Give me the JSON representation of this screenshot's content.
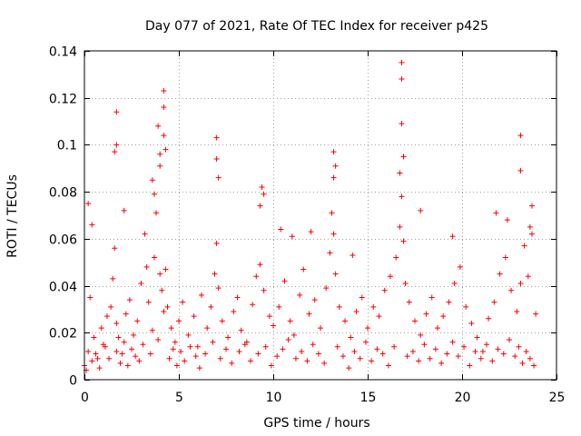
{
  "chart_data": {
    "type": "scatter",
    "title": "Day 077 of 2021, Rate Of TEC Index for receiver p425",
    "xlabel": "GPS time / hours",
    "ylabel": "ROTI / TECUs",
    "xlim": [
      0,
      25
    ],
    "ylim": [
      0,
      0.14
    ],
    "xticks": [
      0,
      5,
      10,
      15,
      20,
      25
    ],
    "yticks": [
      0,
      0.02,
      0.04,
      0.06,
      0.08,
      0.1,
      0.12,
      0.14
    ],
    "xtick_labels": [
      "0",
      "5",
      "10",
      "15",
      "20",
      "25"
    ],
    "ytick_labels": [
      "0",
      "0.02",
      "0.04",
      "0.06",
      "0.08",
      "0.1",
      "0.12",
      "0.14"
    ],
    "grid": true,
    "marker": "+",
    "color": "#ff0000",
    "series": [
      {
        "name": "ROTI",
        "x": [
          0.0,
          0.2,
          0.3,
          0.5,
          0.7,
          0.9,
          1.0,
          1.2,
          1.4,
          1.5,
          1.6,
          1.7,
          1.8,
          2.0,
          2.2,
          2.4,
          2.6,
          2.8,
          3.0,
          3.2,
          3.3,
          3.4,
          3.6,
          3.7,
          3.8,
          4.0,
          4.1,
          4.2,
          4.3,
          4.4,
          4.6,
          4.8,
          5.0,
          5.2,
          5.5,
          5.8,
          6.0,
          6.2,
          6.5,
          6.7,
          6.9,
          7.0,
          7.1,
          7.3,
          7.6,
          7.9,
          8.1,
          8.3,
          8.6,
          8.9,
          9.1,
          9.3,
          9.5,
          9.8,
          10.0,
          10.3,
          10.6,
          10.9,
          11.1,
          11.4,
          11.6,
          11.9,
          12.2,
          12.5,
          12.8,
          13.0,
          13.1,
          13.2,
          13.3,
          13.5,
          13.8,
          14.1,
          14.4,
          14.7,
          15.0,
          15.3,
          15.6,
          15.9,
          16.2,
          16.5,
          16.7,
          16.8,
          16.9,
          17.0,
          17.2,
          17.5,
          17.8,
          18.1,
          18.4,
          18.7,
          19.0,
          19.3,
          19.6,
          19.9,
          20.2,
          20.5,
          20.8,
          21.1,
          21.4,
          21.7,
          22.0,
          22.3,
          22.6,
          22.9,
          23.1,
          23.3,
          23.5,
          23.7,
          23.9,
          0.1,
          0.4,
          0.6,
          0.8,
          1.1,
          1.3,
          1.7,
          1.9,
          2.1,
          2.3,
          2.5,
          2.7,
          2.9,
          3.1,
          3.5,
          3.9,
          4.5,
          4.7,
          4.9,
          5.1,
          5.3,
          5.6,
          5.9,
          6.1,
          6.4,
          6.8,
          7.2,
          7.5,
          7.8,
          8.2,
          8.5,
          8.8,
          9.2,
          9.6,
          9.9,
          10.2,
          10.5,
          10.8,
          11.2,
          11.5,
          11.8,
          12.1,
          12.4,
          12.7,
          13.4,
          13.7,
          14.0,
          14.3,
          14.6,
          14.9,
          15.2,
          15.5,
          15.8,
          16.1,
          16.4,
          17.1,
          17.4,
          17.7,
          18.0,
          18.3,
          18.6,
          18.9,
          19.2,
          19.5,
          19.8,
          20.1,
          20.4,
          20.7,
          21.0,
          21.3,
          21.6,
          21.9,
          22.2,
          22.5,
          22.8,
          23.0,
          23.2,
          23.4,
          23.6,
          23.8,
          16.8,
          16.8,
          16.8,
          16.9,
          16.7,
          4.2,
          4.2,
          4.2,
          4.3,
          1.7,
          1.7,
          1.6,
          7.0,
          7.0,
          7.1,
          3.9,
          4.0,
          4.0,
          3.6,
          3.7,
          13.2,
          13.3,
          13.2,
          23.1,
          23.1,
          9.4,
          9.5,
          9.3,
          23.7,
          23.6,
          0.2,
          0.4,
          2.1,
          10.4,
          11.0,
          12.0,
          14.2,
          17.8,
          19.5,
          21.8,
          22.4
        ],
        "y": [
          0.006,
          0.012,
          0.035,
          0.018,
          0.009,
          0.022,
          0.015,
          0.027,
          0.031,
          0.043,
          0.056,
          0.024,
          0.018,
          0.011,
          0.028,
          0.034,
          0.019,
          0.025,
          0.041,
          0.062,
          0.048,
          0.033,
          0.021,
          0.052,
          0.071,
          0.045,
          0.038,
          0.029,
          0.047,
          0.031,
          0.022,
          0.016,
          0.025,
          0.033,
          0.019,
          0.027,
          0.014,
          0.036,
          0.022,
          0.031,
          0.045,
          0.058,
          0.039,
          0.025,
          0.018,
          0.029,
          0.035,
          0.021,
          0.016,
          0.032,
          0.044,
          0.049,
          0.038,
          0.027,
          0.023,
          0.031,
          0.042,
          0.025,
          0.019,
          0.036,
          0.047,
          0.028,
          0.034,
          0.022,
          0.039,
          0.054,
          0.071,
          0.062,
          0.045,
          0.031,
          0.025,
          0.018,
          0.029,
          0.035,
          0.022,
          0.031,
          0.027,
          0.038,
          0.044,
          0.052,
          0.065,
          0.078,
          0.059,
          0.041,
          0.033,
          0.025,
          0.019,
          0.028,
          0.035,
          0.022,
          0.027,
          0.033,
          0.041,
          0.048,
          0.031,
          0.024,
          0.018,
          0.012,
          0.026,
          0.033,
          0.045,
          0.052,
          0.038,
          0.029,
          0.041,
          0.057,
          0.044,
          0.062,
          0.028,
          0.004,
          0.008,
          0.011,
          0.005,
          0.014,
          0.009,
          0.012,
          0.007,
          0.016,
          0.006,
          0.013,
          0.01,
          0.008,
          0.015,
          0.011,
          0.017,
          0.009,
          0.013,
          0.006,
          0.012,
          0.008,
          0.014,
          0.01,
          0.005,
          0.011,
          0.016,
          0.009,
          0.013,
          0.007,
          0.012,
          0.015,
          0.008,
          0.011,
          0.014,
          0.006,
          0.01,
          0.013,
          0.017,
          0.009,
          0.012,
          0.008,
          0.015,
          0.011,
          0.007,
          0.014,
          0.01,
          0.005,
          0.012,
          0.009,
          0.016,
          0.008,
          0.013,
          0.011,
          0.006,
          0.014,
          0.01,
          0.012,
          0.008,
          0.015,
          0.009,
          0.013,
          0.007,
          0.011,
          0.016,
          0.01,
          0.014,
          0.006,
          0.012,
          0.009,
          0.015,
          0.008,
          0.013,
          0.011,
          0.017,
          0.01,
          0.014,
          0.007,
          0.012,
          0.009,
          0.006,
          0.135,
          0.128,
          0.109,
          0.095,
          0.088,
          0.123,
          0.116,
          0.104,
          0.098,
          0.114,
          0.1,
          0.097,
          0.103,
          0.094,
          0.086,
          0.108,
          0.096,
          0.091,
          0.085,
          0.079,
          0.097,
          0.091,
          0.086,
          0.104,
          0.089,
          0.082,
          0.079,
          0.074,
          0.074,
          0.065,
          0.075,
          0.066,
          0.072,
          0.064,
          0.061,
          0.063,
          0.053,
          0.072,
          0.061,
          0.071,
          0.068
        ]
      }
    ]
  }
}
